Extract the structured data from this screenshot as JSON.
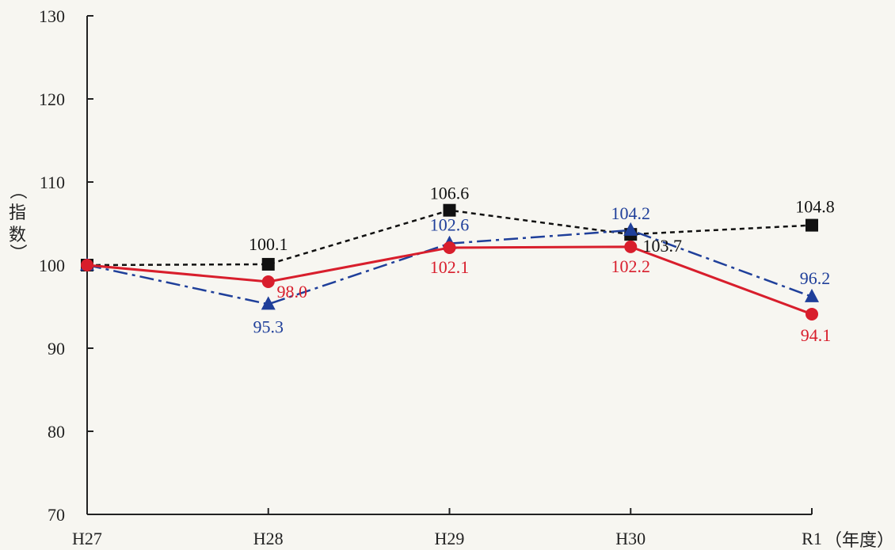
{
  "chart_data": {
    "type": "line",
    "categories": [
      "H27",
      "H28",
      "H29",
      "H30",
      "R1"
    ],
    "ylabel_chars": [
      "（",
      "指",
      "数",
      "）"
    ],
    "xunit": "（年度）",
    "ylim": [
      70,
      130
    ],
    "yticks": [
      70,
      80,
      90,
      100,
      110,
      120,
      130
    ],
    "grid": false,
    "series": [
      {
        "color": "#111111",
        "marker": "square",
        "line_style": "dashed",
        "values": [
          100,
          100.1,
          106.6,
          103.7,
          104.8
        ],
        "labels": [
          "",
          "100.1",
          "106.6",
          "103.7",
          "104.8"
        ]
      },
      {
        "color": "#1f3f9a",
        "marker": "triangle",
        "line_style": "dash-dot",
        "values": [
          100,
          95.3,
          102.6,
          104.2,
          96.2
        ],
        "labels": [
          "",
          "95.3",
          "102.6",
          "104.2",
          "96.2"
        ]
      },
      {
        "color": "#d81e2c",
        "marker": "circle",
        "line_style": "solid",
        "values": [
          100,
          98.0,
          102.1,
          102.2,
          94.1
        ],
        "labels": [
          "",
          "98.0",
          "102.1",
          "102.2",
          "94.1"
        ]
      }
    ]
  }
}
